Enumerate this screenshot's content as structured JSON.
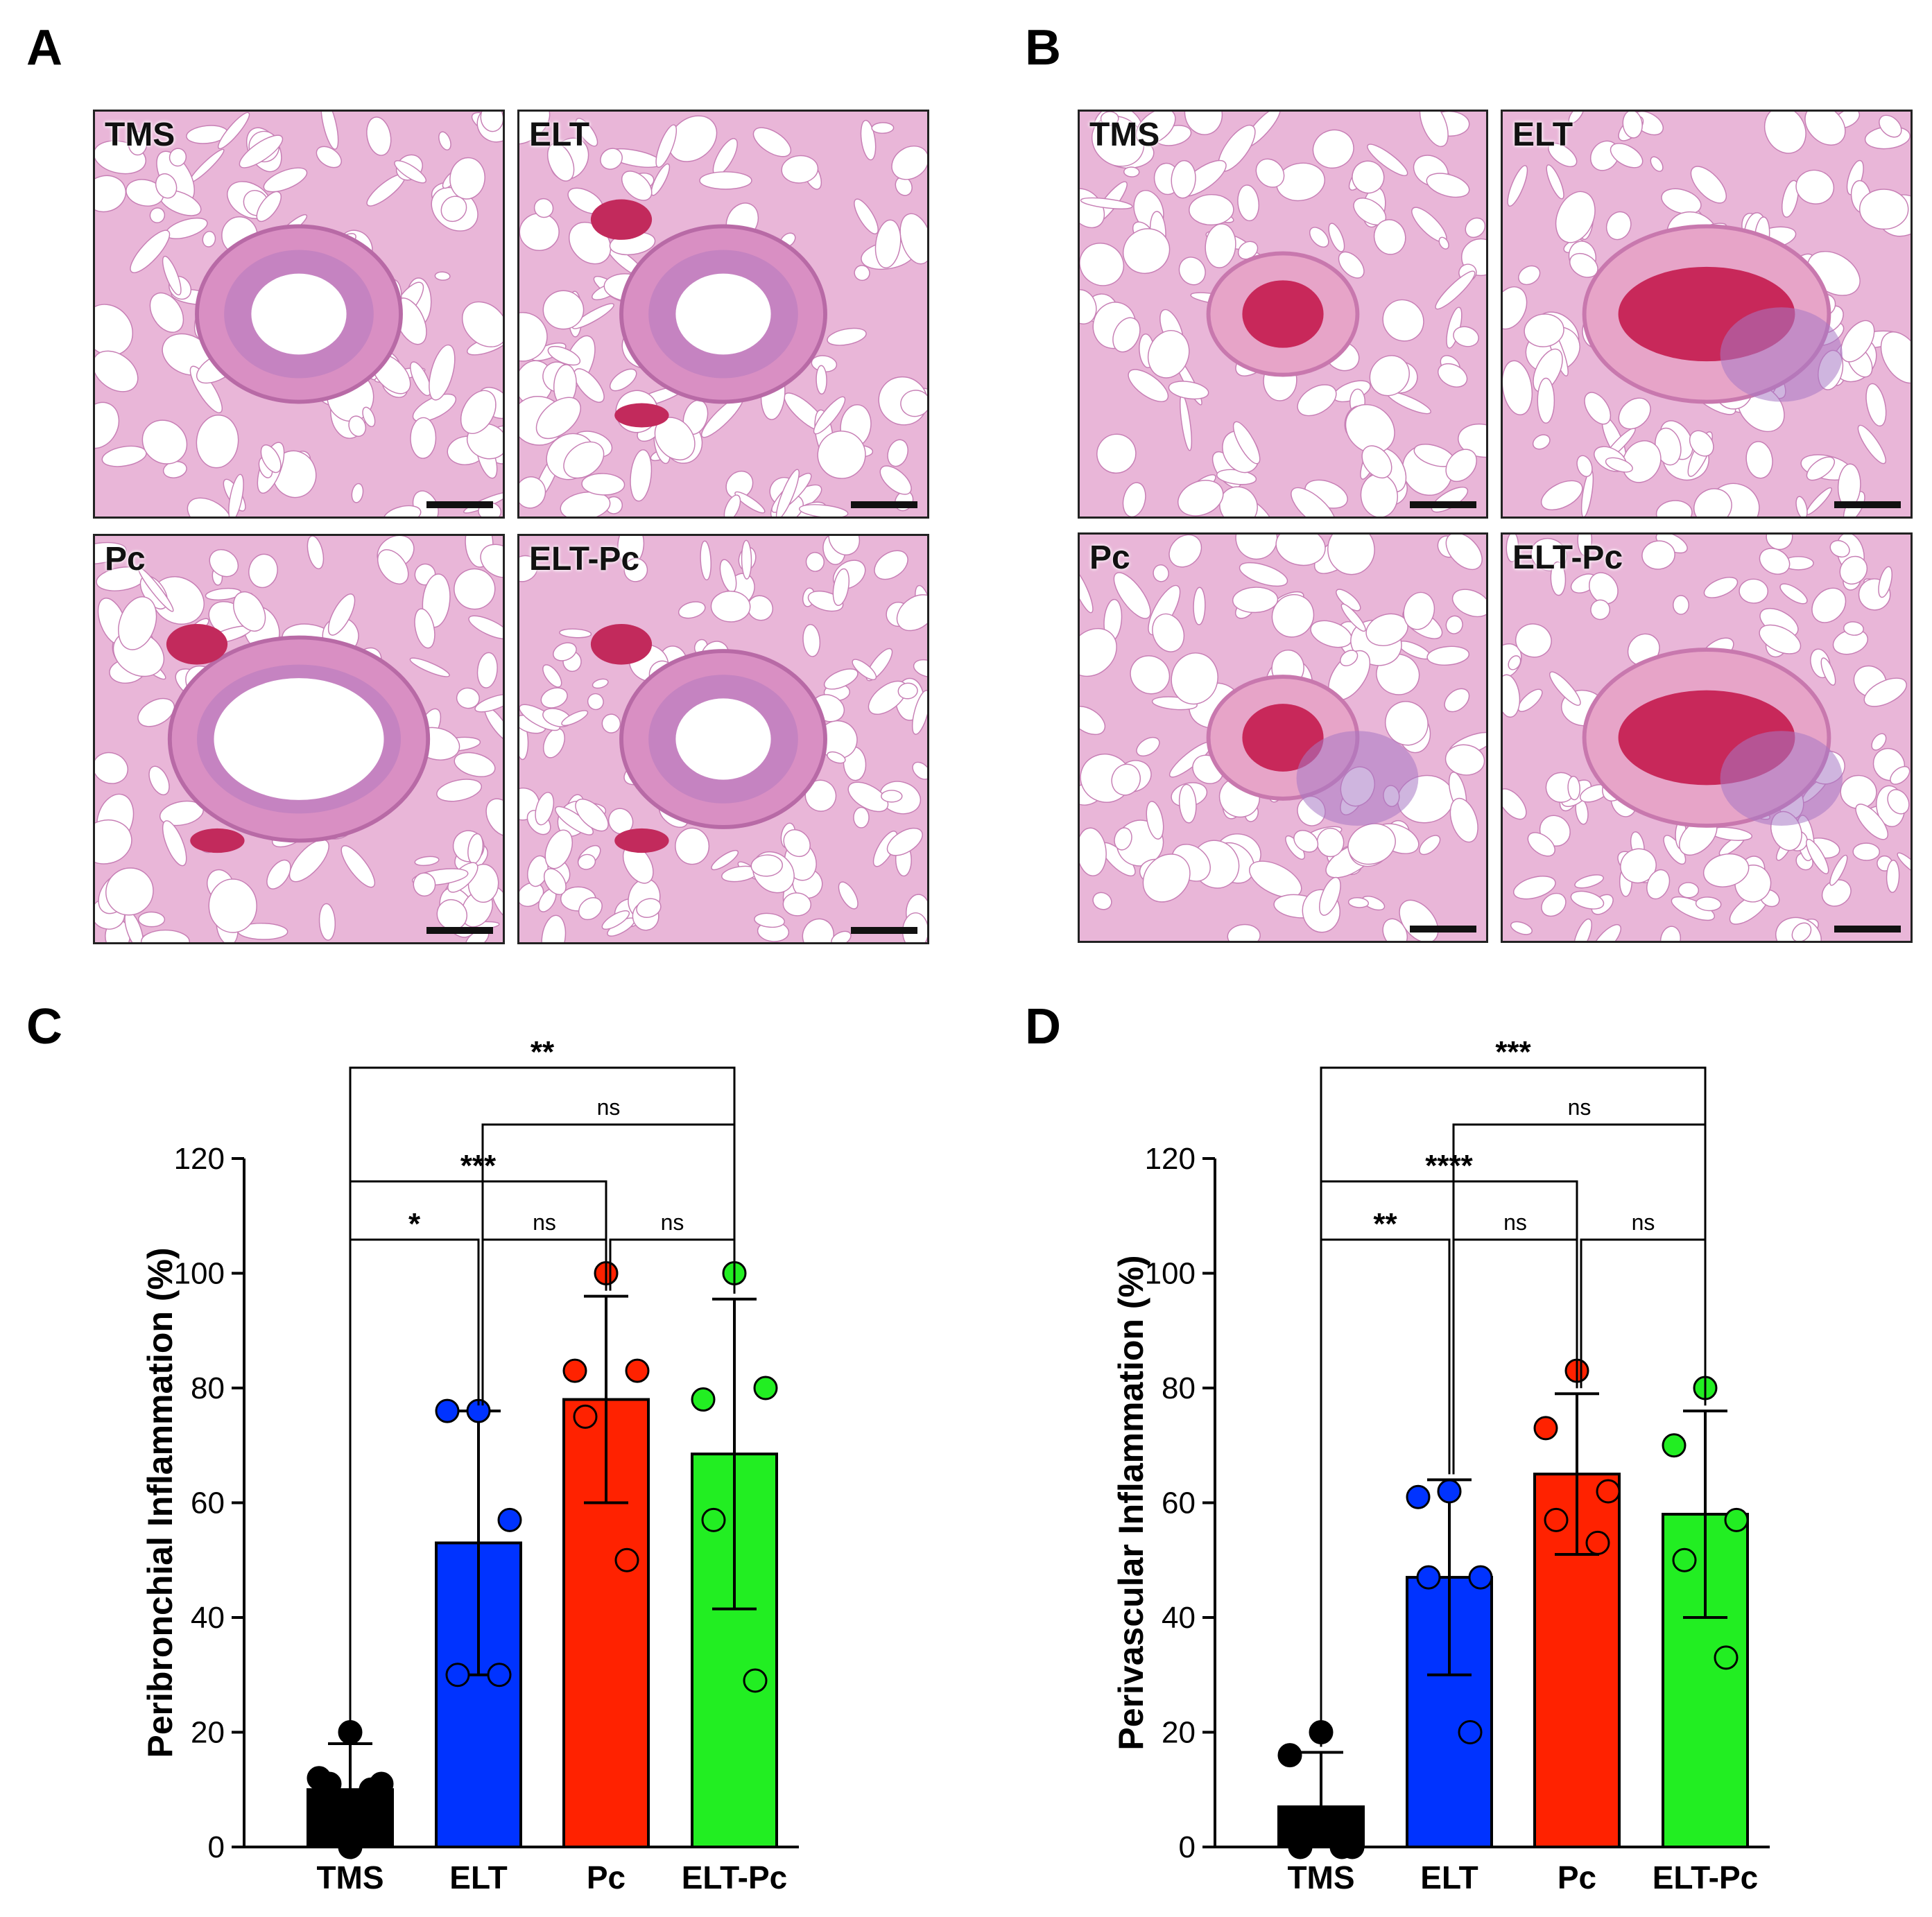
{
  "panels": {
    "A": "A",
    "B": "B",
    "C": "C",
    "D": "D"
  },
  "micrographs": {
    "A": [
      {
        "label": "TMS",
        "feature": "small-airway"
      },
      {
        "label": "ELT",
        "feature": "inflamed-airway"
      },
      {
        "label": "Pc",
        "feature": "large-airway"
      },
      {
        "label": "ELT-Pc",
        "feature": "folded-airway"
      }
    ],
    "B": [
      {
        "label": "TMS",
        "feature": "small-vessel"
      },
      {
        "label": "ELT",
        "feature": "blood-vessel"
      },
      {
        "label": "Pc",
        "feature": "thick-vessel"
      },
      {
        "label": "ELT-Pc",
        "feature": "large-vessel"
      }
    ]
  },
  "colors": {
    "TMS": "#000000",
    "ELT": "#0033ff",
    "Pc": "#ff2200",
    "ELT-Pc": "#22ee22"
  },
  "chart_data": [
    {
      "type": "bar",
      "panel": "C",
      "ylabel": "Peribronchial Inflammation (%)",
      "xlabel": "",
      "ylim": [
        0,
        120
      ],
      "yticks": [
        0,
        20,
        40,
        60,
        80,
        100,
        120
      ],
      "categories": [
        "TMS",
        "ELT",
        "Pc",
        "ELT-Pc"
      ],
      "means": [
        10,
        53,
        78,
        68.5
      ],
      "sd": [
        8,
        23,
        18,
        27
      ],
      "points": [
        [
          20,
          12,
          11,
          11,
          10,
          0
        ],
        [
          76,
          76,
          57,
          30,
          30
        ],
        [
          100,
          83,
          83,
          75,
          50
        ],
        [
          100,
          78,
          80,
          57,
          29
        ]
      ],
      "comparisons": [
        {
          "from": "TMS",
          "to": "ELT-Pc",
          "label": "**"
        },
        {
          "from": "ELT",
          "to": "ELT-Pc",
          "label": "ns"
        },
        {
          "from": "TMS",
          "to": "Pc",
          "label": "***"
        },
        {
          "from": "TMS",
          "to": "ELT",
          "label": "*"
        },
        {
          "from": "ELT",
          "to": "Pc",
          "label": "ns"
        },
        {
          "from": "Pc",
          "to": "ELT-Pc",
          "label": "ns"
        }
      ]
    },
    {
      "type": "bar",
      "panel": "D",
      "ylabel": "Perivascular Inflammation (%)",
      "xlabel": "",
      "ylim": [
        0,
        120
      ],
      "yticks": [
        0,
        20,
        40,
        60,
        80,
        100,
        120
      ],
      "categories": [
        "TMS",
        "ELT",
        "Pc",
        "ELT-Pc"
      ],
      "means": [
        7,
        47,
        65,
        58
      ],
      "sd": [
        9.5,
        17,
        14,
        18
      ],
      "points": [
        [
          20,
          16,
          0,
          0,
          0
        ],
        [
          62,
          61,
          47,
          47,
          20
        ],
        [
          83,
          73,
          62,
          57,
          53
        ],
        [
          80,
          70,
          57,
          50,
          33
        ]
      ],
      "comparisons": [
        {
          "from": "TMS",
          "to": "ELT-Pc",
          "label": "***"
        },
        {
          "from": "ELT",
          "to": "ELT-Pc",
          "label": "ns"
        },
        {
          "from": "TMS",
          "to": "Pc",
          "label": "****"
        },
        {
          "from": "TMS",
          "to": "ELT",
          "label": "**"
        },
        {
          "from": "ELT",
          "to": "Pc",
          "label": "ns"
        },
        {
          "from": "Pc",
          "to": "ELT-Pc",
          "label": "ns"
        }
      ]
    }
  ]
}
